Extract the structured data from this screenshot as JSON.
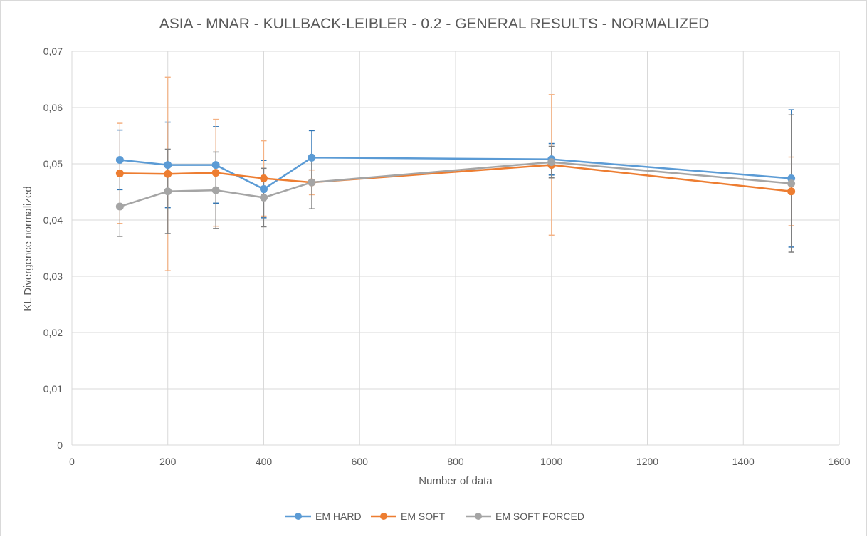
{
  "chart_data": {
    "type": "line",
    "title": "ASIA - MNAR - KULLBACK-LEIBLER - 0.2 - GENERAL RESULTS - NORMALIZED",
    "xlabel": "Number of data",
    "ylabel": "KL Divergence normalized",
    "xlim": [
      0,
      1600
    ],
    "ylim": [
      0,
      0.07
    ],
    "x_ticks": [
      {
        "value": 0,
        "label": "0"
      },
      {
        "value": 200,
        "label": "200"
      },
      {
        "value": 400,
        "label": "400"
      },
      {
        "value": 600,
        "label": "600"
      },
      {
        "value": 800,
        "label": "800"
      },
      {
        "value": 1000,
        "label": "1000"
      },
      {
        "value": 1200,
        "label": "1200"
      },
      {
        "value": 1400,
        "label": "1400"
      },
      {
        "value": 1600,
        "label": "1600"
      }
    ],
    "y_ticks": [
      {
        "value": 0,
        "label": "0"
      },
      {
        "value": 0.01,
        "label": "0,01"
      },
      {
        "value": 0.02,
        "label": "0,02"
      },
      {
        "value": 0.03,
        "label": "0,03"
      },
      {
        "value": 0.04,
        "label": "0,04"
      },
      {
        "value": 0.05,
        "label": "0,05"
      },
      {
        "value": 0.06,
        "label": "0,06"
      },
      {
        "value": 0.07,
        "label": "0,07"
      }
    ],
    "grid": true,
    "legend_position": "bottom",
    "x": [
      100,
      200,
      300,
      400,
      500,
      1000,
      1500
    ],
    "series": [
      {
        "name": "EM HARD",
        "color": "#5b9bd5",
        "error_color": "#2e75b6",
        "values": [
          0.0507,
          0.0498,
          0.0498,
          0.0455,
          0.0511,
          0.0508,
          0.0474
        ],
        "errors": [
          0.0053,
          0.0076,
          0.0068,
          0.0051,
          0.0048,
          0.0028,
          0.0122
        ]
      },
      {
        "name": "EM SOFT",
        "color": "#ed7d31",
        "error_color": "#f4b183",
        "values": [
          0.0483,
          0.0482,
          0.0484,
          0.0474,
          0.0467,
          0.0498,
          0.0451
        ],
        "errors": [
          0.0089,
          0.0172,
          0.0095,
          0.0067,
          0.0022,
          0.0125,
          0.0061
        ]
      },
      {
        "name": "EM SOFT FORCED",
        "color": "#a5a5a5",
        "error_color": "#7f7f7f",
        "values": [
          0.0424,
          0.0451,
          0.0453,
          0.044,
          0.0467,
          0.0503,
          0.0465
        ],
        "errors": [
          0.0053,
          0.0075,
          0.0068,
          0.0052,
          0.0047,
          0.0028,
          0.0122
        ]
      }
    ]
  }
}
